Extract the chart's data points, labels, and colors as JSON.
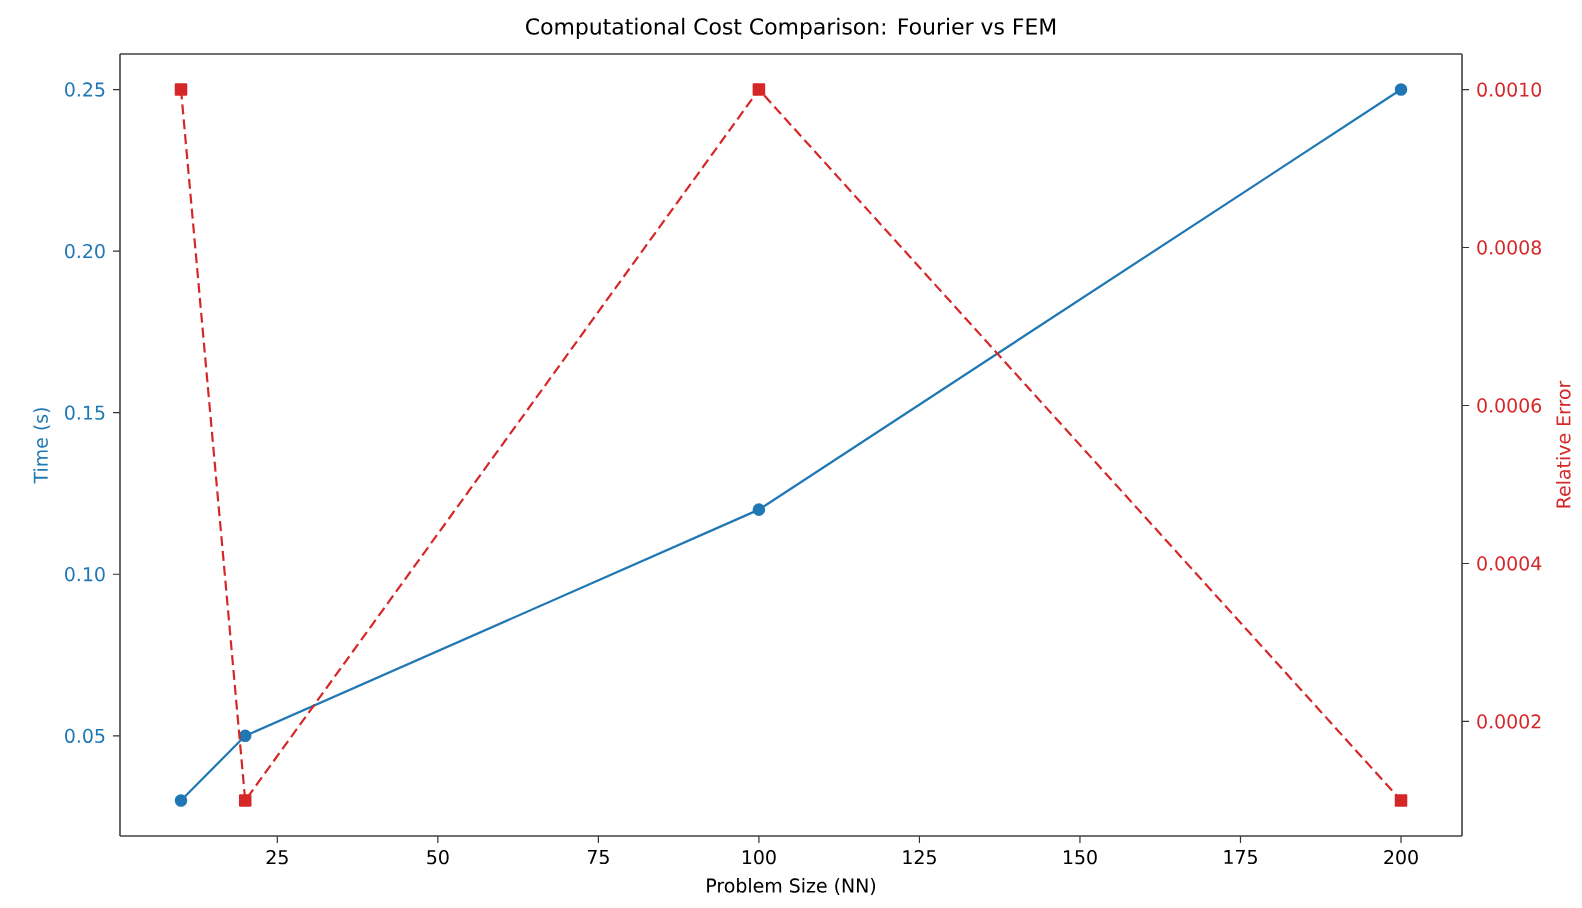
{
  "chart_data": {
    "type": "line",
    "title": "Computational Cost Comparison: Fourier vs FEM",
    "xlabel": "Problem Size (NN)",
    "ylabel": "Time (s)",
    "y2label": "Relative Error",
    "x": [
      10,
      20,
      100,
      200
    ],
    "series": [
      {
        "color": "#1f77b4",
        "values": [
          0.03,
          0.05,
          0.12,
          0.25
        ],
        "marker": "circle",
        "line_style": "solid"
      },
      {
        "color": "#d62728",
        "values": [
          0.001,
          0.0001,
          0.001,
          0.0001
        ],
        "marker": "square",
        "line_style": "dashed",
        "axis": "y2"
      }
    ],
    "xlim": [
      0.5,
      209.5
    ],
    "xticks": [
      25,
      50,
      75,
      100,
      125,
      150,
      175,
      200
    ],
    "ylim": [
      0.019,
      0.261
    ],
    "yticks": [
      {
        "value": 0.05,
        "label": "0.05"
      },
      {
        "value": 0.1,
        "label": "0.10"
      },
      {
        "value": 0.15,
        "label": "0.15"
      },
      {
        "value": 0.2,
        "label": "0.20"
      },
      {
        "value": 0.25,
        "label": "0.25"
      }
    ],
    "y2lim": [
      5.5e-05,
      0.001045
    ],
    "y2ticks": [
      {
        "value": 0.0002,
        "label": "0.0002"
      },
      {
        "value": 0.0004,
        "label": "0.0004"
      },
      {
        "value": 0.0006,
        "label": "0.0006"
      },
      {
        "value": 0.0008,
        "label": "0.0008"
      },
      {
        "value": 0.001,
        "label": "0.0010"
      }
    ]
  }
}
